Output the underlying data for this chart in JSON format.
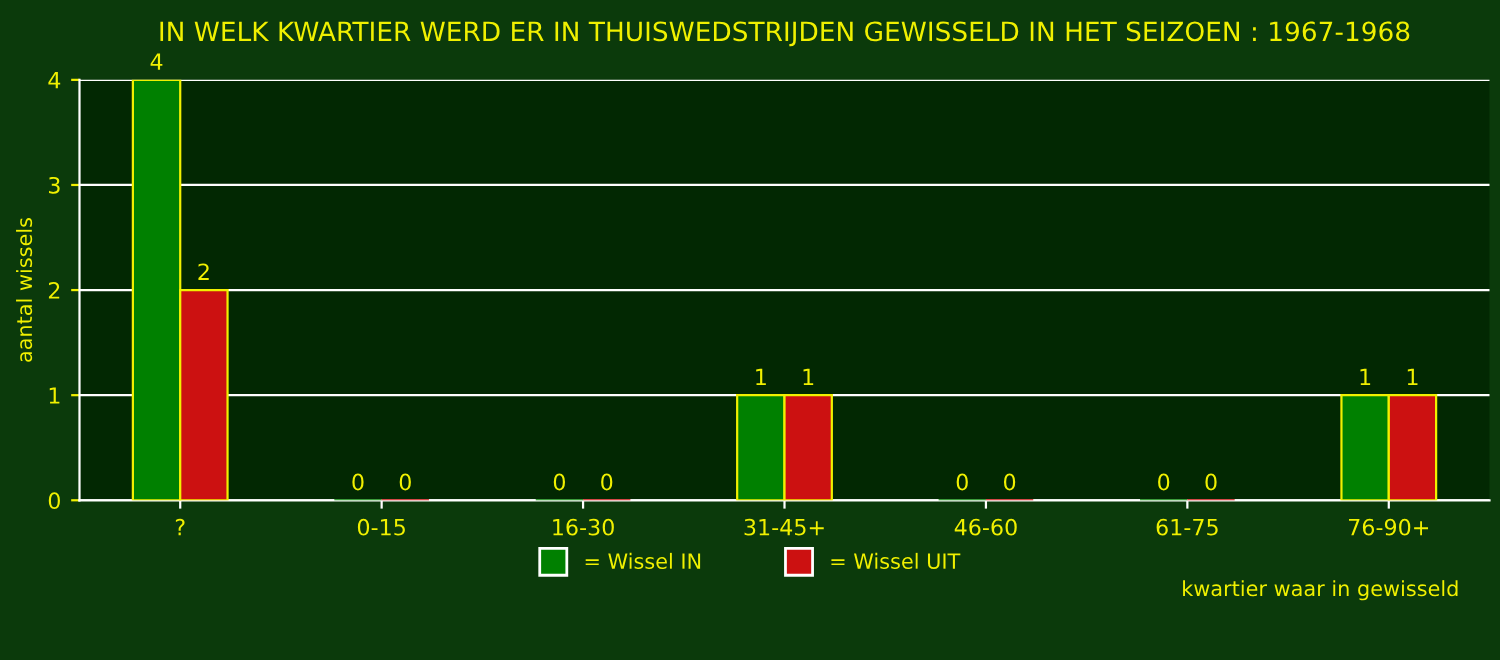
{
  "chart_data": {
    "type": "bar",
    "title": "IN WELK KWARTIER WERD ER IN THUISWEDSTRIJDEN GEWISSELD IN HET SEIZOEN : 1967-1968",
    "xlabel": "kwartier waar in gewisseld",
    "ylabel": "aantal wissels",
    "categories": [
      "?",
      "0-15",
      "16-30",
      "31-45+",
      "46-60",
      "61-75",
      "76-90+"
    ],
    "series": [
      {
        "name": "= Wissel IN",
        "color": "#008000",
        "values": [
          4,
          0,
          0,
          1,
          0,
          0,
          1
        ]
      },
      {
        "name": "= Wissel UIT",
        "color": "#cc1111",
        "values": [
          2,
          0,
          0,
          1,
          0,
          0,
          1
        ]
      }
    ],
    "ylim": [
      0,
      4
    ],
    "yticks": [
      0,
      1,
      2,
      3,
      4
    ],
    "grid": "y",
    "legend": "bottom",
    "data_labels": true
  }
}
